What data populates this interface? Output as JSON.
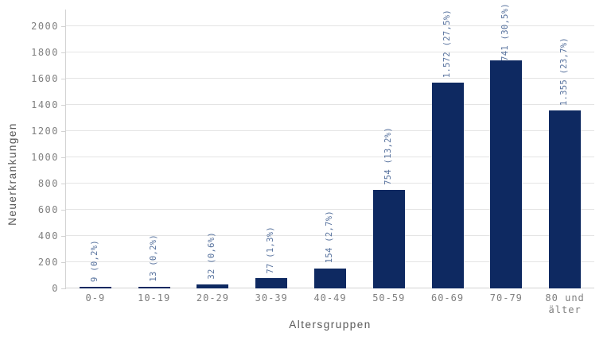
{
  "chart_data": {
    "type": "bar",
    "title": "",
    "xlabel": "Altersgruppen",
    "ylabel": "Neuerkrankungen",
    "categories": [
      "0-9",
      "10-19",
      "20-29",
      "30-39",
      "40-49",
      "50-59",
      "60-69",
      "70-79",
      "80 und\nälter"
    ],
    "values": [
      9,
      13,
      32,
      77,
      154,
      754,
      1572,
      1741,
      1355
    ],
    "bar_labels": [
      "9 (0,2%)",
      "13 (0,2%)",
      "32 (0,6%)",
      "77 (1,3%)",
      "154 (2,7%)",
      "754 (13,2%)",
      "1.572 (27,5%)",
      "1.741 (30,5%)",
      "1.355 (23,7%)"
    ],
    "y_ticks": [
      0,
      200,
      400,
      600,
      800,
      1000,
      1200,
      1400,
      1600,
      1800,
      2000
    ],
    "ylim": [
      0,
      2000
    ],
    "grid": true,
    "legend_position": "none",
    "colors": {
      "bar": "#0e2961",
      "bar_label": "#56719d",
      "tick_label": "#7f7f7f",
      "axis_title": "#595959",
      "gridline": "#e4e4e4",
      "axis_line": "#d2d2d2"
    }
  }
}
